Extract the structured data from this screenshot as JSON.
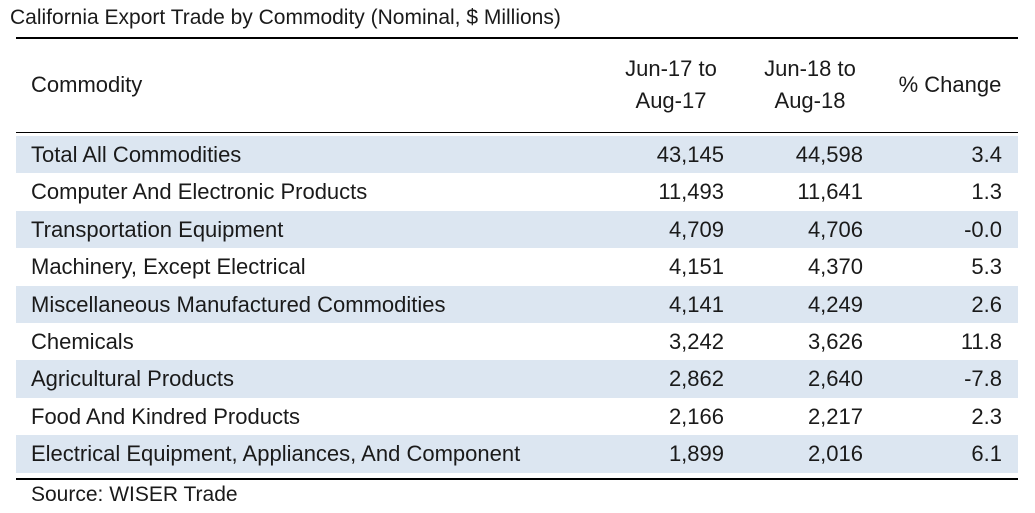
{
  "title": "California Export Trade by Commodity (Nominal, $ Millions)",
  "columns": {
    "commodity": "Commodity",
    "period1": [
      "Jun-17  to",
      "Aug-17"
    ],
    "period2": [
      "Jun-18  to",
      "Aug-18"
    ],
    "change": "% Change"
  },
  "rows": [
    {
      "name": "Total All Commodities",
      "v1": "43,145",
      "v2": "44,598",
      "pct": "3.4"
    },
    {
      "name": "Computer And Electronic Products",
      "v1": "11,493",
      "v2": "11,641",
      "pct": "1.3"
    },
    {
      "name": "Transportation Equipment",
      "v1": "4,709",
      "v2": "4,706",
      "pct": "-0.0"
    },
    {
      "name": "Machinery, Except Electrical",
      "v1": "4,151",
      "v2": "4,370",
      "pct": "5.3"
    },
    {
      "name": "Miscellaneous Manufactured Commodities",
      "v1": "4,141",
      "v2": "4,249",
      "pct": "2.6"
    },
    {
      "name": "Chemicals",
      "v1": "3,242",
      "v2": "3,626",
      "pct": "11.8"
    },
    {
      "name": "Agricultural Products",
      "v1": "2,862",
      "v2": "2,640",
      "pct": "-7.8"
    },
    {
      "name": "Food And Kindred Products",
      "v1": "2,166",
      "v2": "2,217",
      "pct": "2.3"
    },
    {
      "name": "Electrical Equipment, Appliances, And Component",
      "v1": "1,899",
      "v2": "2,016",
      "pct": "6.1"
    }
  ],
  "source": "Source: WISER Trade",
  "colors": {
    "band": "#dce6f1",
    "rule": "#000000",
    "text": "#1a1a1a"
  }
}
